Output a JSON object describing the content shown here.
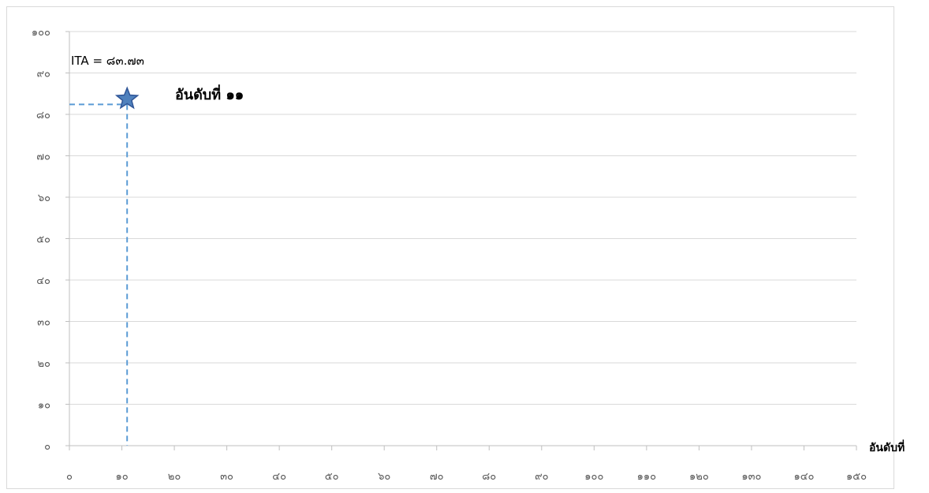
{
  "chart_data": {
    "type": "scatter",
    "title": "",
    "xlabel": "อันดับที่",
    "ylabel": "",
    "xlim": [
      0,
      150
    ],
    "ylim": [
      0,
      100
    ],
    "x_ticks": [
      0,
      10,
      20,
      30,
      40,
      50,
      60,
      70,
      80,
      90,
      100,
      110,
      120,
      130,
      140,
      150
    ],
    "y_ticks": [
      0,
      10,
      20,
      30,
      40,
      50,
      60,
      70,
      80,
      90,
      100
    ],
    "x_tick_labels": [
      "๐",
      "๑๐",
      "๒๐",
      "๓๐",
      "๔๐",
      "๕๐",
      "๖๐",
      "๗๐",
      "๘๐",
      "๙๐",
      "๑๐๐",
      "๑๑๐",
      "๑๒๐",
      "๑๓๐",
      "๑๔๐",
      "๑๕๐"
    ],
    "y_tick_labels": [
      "๐",
      "๑๐",
      "๒๐",
      "๓๐",
      "๔๐",
      "๕๐",
      "๖๐",
      "๗๐",
      "๘๐",
      "๙๐",
      "๑๐๐"
    ],
    "grid": true,
    "points": [
      {
        "x": 11,
        "y": 83.73,
        "marker": "star",
        "color": "#4f81bd"
      }
    ],
    "annotations": {
      "value_label": "ITA = ๘๓.๗๓",
      "rank_label": "อันดับที่ ๑๑"
    },
    "colors": {
      "grid": "#d9d9d9",
      "axis": "#bfbfbf",
      "guide": "#5b9bd5",
      "star_fill": "#4f81bd",
      "star_stroke": "#2f5597"
    }
  }
}
